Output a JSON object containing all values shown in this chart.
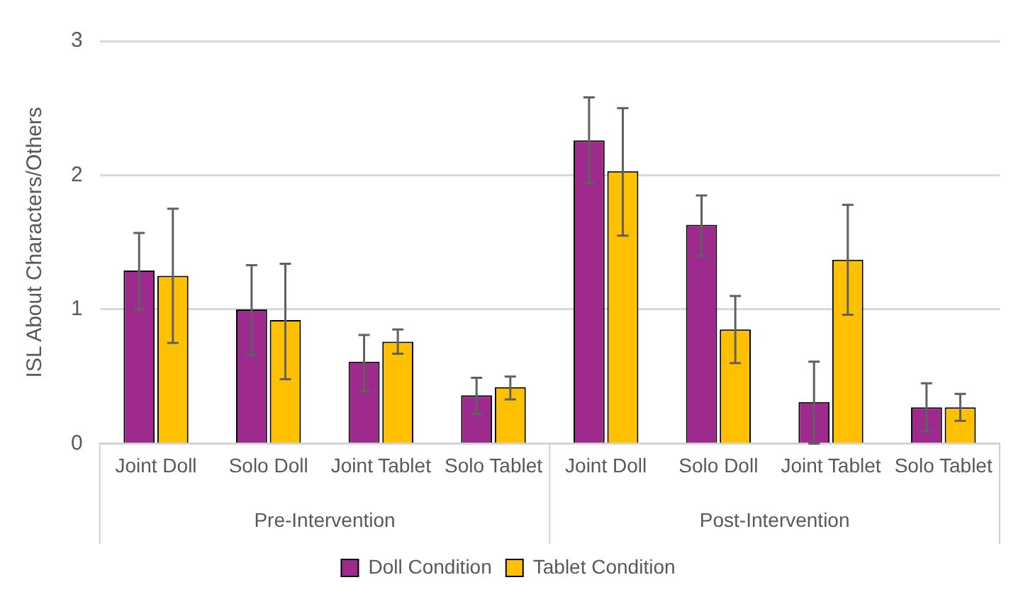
{
  "chart_data": {
    "type": "bar",
    "ylabel": "ISL About Characters/Others",
    "categories": [
      "Joint Doll",
      "Solo Doll",
      "Joint Tablet",
      "Solo Tablet",
      "Joint Doll",
      "Solo Doll",
      "Joint Tablet",
      "Solo Tablet"
    ],
    "series": [
      {
        "name": "Doll Condition",
        "color": "#9e2a8e",
        "values": [
          1.29,
          1.0,
          0.61,
          0.36,
          2.26,
          1.63,
          0.31,
          0.27
        ],
        "errors": [
          [
            1.0,
            1.57
          ],
          [
            0.66,
            1.33
          ],
          [
            0.39,
            0.81
          ],
          [
            0.22,
            0.49
          ],
          [
            1.94,
            2.58
          ],
          [
            1.4,
            1.85
          ],
          [
            0.0,
            0.61
          ],
          [
            0.09,
            0.45
          ]
        ]
      },
      {
        "name": "Tablet Condition",
        "color": "#ffc000",
        "values": [
          1.25,
          0.92,
          0.76,
          0.42,
          2.03,
          0.85,
          1.37,
          0.27
        ],
        "errors": [
          [
            0.75,
            1.75
          ],
          [
            0.48,
            1.34
          ],
          [
            0.67,
            0.85
          ],
          [
            0.33,
            0.5
          ],
          [
            1.55,
            2.5
          ],
          [
            0.6,
            1.1
          ],
          [
            0.96,
            1.78
          ],
          [
            0.17,
            0.37
          ]
        ]
      }
    ],
    "annotations": [
      "Pre-Intervention",
      "Post-Intervention"
    ],
    "ylim": [
      0,
      3
    ],
    "yticks": [
      0,
      1,
      2,
      3
    ],
    "grid": "y",
    "legend": "bottom"
  }
}
